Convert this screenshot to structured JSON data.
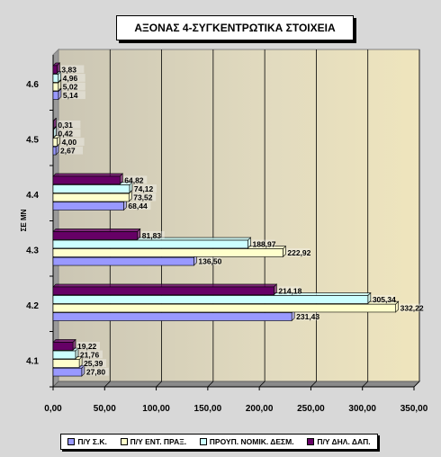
{
  "chart_data": {
    "type": "bar",
    "orientation": "horizontal",
    "title": "ΑΞΟΝΑΣ 4-ΣΥΓΚΕΝΤΡΩΤΙΚΑ ΣΤΟΙΧΕΙΑ",
    "ylabel": "ΣΕ ΜΝ",
    "xlabel": "",
    "categories": [
      "4.1",
      "4.2",
      "4.3",
      "4.4",
      "4.5",
      "4.6"
    ],
    "xlim": [
      0,
      350
    ],
    "xticks": [
      "0,00",
      "50,00",
      "100,00",
      "150,00",
      "200,00",
      "250,00",
      "300,00",
      "350,00"
    ],
    "grid": "vertical",
    "legend_position": "bottom",
    "series": [
      {
        "name": "Π/Υ Σ.Κ.",
        "color": "#9999ff",
        "values": [
          27.8,
          231.43,
          136.5,
          68.44,
          2.67,
          5.14
        ],
        "labels": [
          "27,80",
          "231,43",
          "136,50",
          "68,44",
          "2,67",
          "5,14"
        ]
      },
      {
        "name": "Π/Υ ΕΝΤ. ΠΡΑΞ.",
        "color": "#ffffcc",
        "values": [
          25.39,
          332.22,
          222.92,
          73.52,
          4.0,
          5.02
        ],
        "labels": [
          "25,39",
          "332,22",
          "222,92",
          "73,52",
          "4,00",
          "5,02"
        ]
      },
      {
        "name": "ΠΡΟΥΠ. ΝΟΜΙΚ. ΔΕΣΜ.",
        "color": "#ccffff",
        "values": [
          21.76,
          305.34,
          188.97,
          74.12,
          0.42,
          4.96
        ],
        "labels": [
          "21,76",
          "305,34",
          "188,97",
          "74,12",
          "0,42",
          "4,96"
        ]
      },
      {
        "name": "Π/Υ ΔΗΛ. ΔΑΠ.",
        "color": "#660066",
        "values": [
          19.22,
          214.18,
          81.83,
          64.82,
          0.31,
          3.83
        ],
        "labels": [
          "19,22",
          "214,18",
          "81,83",
          "64,82",
          "0,31",
          "3,83"
        ]
      }
    ]
  }
}
